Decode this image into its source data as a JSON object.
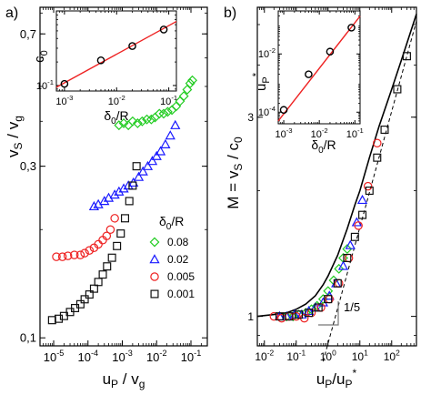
{
  "figure": {
    "panel_a": {
      "label": "a)",
      "chart_data": {
        "type": "scatter",
        "xlabel": "u_P / v_g",
        "ylabel": "v_S / v_g",
        "xscale": "log",
        "yscale": "log",
        "xlim": [
          4e-06,
          0.3
        ],
        "ylim": [
          0.095,
          0.83
        ],
        "x_ticks": [
          {
            "value": 1e-05,
            "base": "10",
            "exp": "-5"
          },
          {
            "value": 0.0001,
            "base": "10",
            "exp": "-4"
          },
          {
            "value": 0.001,
            "base": "10",
            "exp": "-3"
          },
          {
            "value": 0.01,
            "base": "10",
            "exp": "-2"
          },
          {
            "value": 0.1,
            "base": "10",
            "exp": "-1"
          }
        ],
        "y_ticks": [
          {
            "value": 0.1,
            "label": "0,1"
          },
          {
            "value": 0.3,
            "label": "0,3"
          },
          {
            "value": 0.7,
            "label": "0,7"
          }
        ],
        "legend": {
          "title": "δ0/R",
          "placement": "bottom-right",
          "entries": [
            "0.08",
            "0.02",
            "0.005",
            "0.001"
          ]
        },
        "series": [
          {
            "name": "0.08",
            "marker": "diamond",
            "color": "#22cc22",
            "x": [
              0.0008,
              0.0011,
              0.0015,
              0.002,
              0.0028,
              0.0038,
              0.0052,
              0.007,
              0.009,
              0.012,
              0.016,
              0.021,
              0.028,
              0.037,
              0.048,
              0.062,
              0.078,
              0.095,
              0.11
            ],
            "y": [
              0.39,
              0.395,
              0.39,
              0.4,
              0.395,
              0.4,
              0.405,
              0.405,
              0.41,
              0.42,
              0.42,
              0.425,
              0.43,
              0.44,
              0.455,
              0.47,
              0.49,
              0.51,
              0.52
            ]
          },
          {
            "name": "0.02",
            "marker": "triangle",
            "color": "#1a1aff",
            "x": [
              0.00015,
              0.0002,
              0.0003,
              0.0004,
              0.0006,
              0.0008,
              0.0011,
              0.0015,
              0.0021,
              0.003,
              0.004,
              0.0055,
              0.0075,
              0.01,
              0.013,
              0.018,
              0.025,
              0.035
            ],
            "y": [
              0.232,
              0.235,
              0.24,
              0.245,
              0.25,
              0.255,
              0.26,
              0.265,
              0.27,
              0.28,
              0.29,
              0.3,
              0.31,
              0.32,
              0.33,
              0.345,
              0.365,
              0.39
            ]
          },
          {
            "name": "0.005",
            "marker": "circle",
            "color": "#ee2222",
            "x": [
              1.2e-05,
              1.8e-05,
              2.6e-05,
              4e-05,
              6e-05,
              8e-05,
              0.00011,
              0.00015,
              0.0002,
              0.00027,
              0.00035,
              0.00045,
              0.0006
            ],
            "y": [
              0.168,
              0.168,
              0.169,
              0.17,
              0.17,
              0.172,
              0.175,
              0.178,
              0.182,
              0.187,
              0.192,
              0.2,
              0.215
            ]
          },
          {
            "name": "0.001",
            "marker": "square",
            "color": "#111111",
            "x": [
              9e-06,
              1.4e-05,
              2e-05,
              3e-05,
              4.2e-05,
              6e-05,
              8e-05,
              0.00011,
              0.00015,
              0.0002,
              0.00027,
              0.00036,
              0.0005,
              0.0007,
              0.0009,
              0.0012,
              0.0016,
              0.002,
              0.0026
            ],
            "y": [
              0.112,
              0.113,
              0.115,
              0.118,
              0.121,
              0.124,
              0.128,
              0.132,
              0.137,
              0.143,
              0.15,
              0.158,
              0.167,
              0.18,
              0.195,
              0.215,
              0.24,
              0.265,
              0.3
            ]
          }
        ]
      },
      "inset": {
        "chart_data": {
          "type": "line",
          "xlabel": "δ0/R",
          "ylabel": "c0",
          "xscale": "log",
          "yscale": "log",
          "xlim": [
            0.0007,
            0.14
          ],
          "ylim": [
            0.085,
            0.9
          ],
          "x_ticks": [
            {
              "value": 0.001,
              "base": "10",
              "exp": "-3"
            },
            {
              "value": 0.01,
              "base": "10",
              "exp": "-2"
            },
            {
              "value": 0.1,
              "base": "10",
              "exp": "-1"
            }
          ],
          "y_ticks": [
            {
              "value": 0.1,
              "base": "10",
              "exp": "-1"
            }
          ],
          "fit_line": {
            "x": [
              0.0007,
              0.14
            ],
            "y": [
              0.095,
              0.66
            ],
            "color": "#ee2222"
          },
          "points": {
            "x": [
              0.001,
              0.005,
              0.02,
              0.08
            ],
            "y": [
              0.105,
              0.21,
              0.32,
              0.52
            ]
          }
        }
      }
    },
    "panel_b": {
      "label": "b)",
      "chart_data": {
        "type": "scatter",
        "xlabel": "u_P / u_P*",
        "ylabel": "M = v_S / c_0",
        "xscale": "log",
        "yscale": "log",
        "xlim": [
          0.006,
          600
        ],
        "ylim": [
          0.85,
          5.5
        ],
        "x_ticks": [
          {
            "value": 0.01,
            "base": "10",
            "exp": "-2"
          },
          {
            "value": 0.1,
            "base": "10",
            "exp": "-1"
          },
          {
            "value": 1,
            "base": "10",
            "exp": "0"
          },
          {
            "value": 10,
            "base": "10",
            "exp": "1"
          },
          {
            "value": 100,
            "base": "10",
            "exp": "2"
          }
        ],
        "y_ticks": [
          {
            "value": 1,
            "label": "1"
          },
          {
            "value": 3,
            "label": "3"
          }
        ],
        "annotation": "1/5",
        "curve": {
          "x": [
            0.006,
            0.02,
            0.05,
            0.1,
            0.2,
            0.4,
            0.7,
            1,
            2,
            4,
            7,
            10,
            20,
            40,
            100,
            200,
            600
          ],
          "y": [
            1.0,
            1.01,
            1.02,
            1.04,
            1.07,
            1.12,
            1.19,
            1.25,
            1.4,
            1.62,
            1.85,
            2.0,
            2.4,
            2.85,
            3.5,
            4.1,
            5.3
          ]
        },
        "asymptote": {
          "x": [
            0.7,
            600
          ],
          "y": [
            0.78,
            5.1
          ]
        },
        "series": [
          {
            "name": "0.08",
            "marker": "diamond",
            "color": "#22cc22",
            "x": [
              0.05,
              0.08,
              0.12,
              0.2,
              0.3,
              0.45,
              0.7,
              1,
              1.5,
              2.2,
              3,
              4
            ],
            "y": [
              1.0,
              1.0,
              1.01,
              1.02,
              1.04,
              1.06,
              1.1,
              1.15,
              1.22,
              1.3,
              1.38,
              1.45
            ]
          },
          {
            "name": "0.02",
            "marker": "triangle",
            "color": "#1a1aff",
            "x": [
              0.03,
              0.05,
              0.09,
              0.15,
              0.25,
              0.4,
              0.7,
              1.1,
              1.8,
              3,
              5,
              8,
              12
            ],
            "y": [
              1.0,
              1.0,
              1.01,
              1.01,
              1.03,
              1.05,
              1.08,
              1.12,
              1.2,
              1.32,
              1.48,
              1.68,
              1.9
            ]
          },
          {
            "name": "0.005",
            "marker": "circle",
            "color": "#ee2222",
            "x": [
              0.02,
              0.035,
              0.06,
              0.1,
              0.18,
              0.3,
              0.6,
              1.1,
              2.2,
              4.5,
              9,
              18,
              35
            ],
            "y": [
              1.0,
              0.99,
              1.0,
              1.0,
              0.99,
              1.02,
              1.05,
              1.1,
              1.2,
              1.38,
              1.65,
              2.05,
              2.6
            ]
          },
          {
            "name": "0.001",
            "marker": "square",
            "color": "#111111",
            "x": [
              0.03,
              0.06,
              0.12,
              0.25,
              0.5,
              1,
              2,
              4,
              7,
              12,
              20,
              35,
              60,
              150,
              300
            ],
            "y": [
              1.0,
              1.0,
              1.01,
              1.02,
              1.05,
              1.1,
              1.2,
              1.38,
              1.55,
              1.75,
              2.0,
              2.4,
              2.8,
              3.5,
              4.2
            ]
          }
        ]
      },
      "inset": {
        "chart_data": {
          "type": "line",
          "xlabel": "δ0/R",
          "ylabel": "u_P*",
          "xscale": "log",
          "yscale": "log",
          "xlim": [
            0.0007,
            0.14
          ],
          "ylim": [
            4e-05,
            0.3
          ],
          "x_ticks": [
            {
              "value": 0.001,
              "base": "10",
              "exp": "-3"
            },
            {
              "value": 0.01,
              "base": "10",
              "exp": "-2"
            },
            {
              "value": 0.1,
              "base": "10",
              "exp": "-1"
            }
          ],
          "y_ticks": [
            {
              "value": 0.0001,
              "base": "10",
              "exp": "-4"
            },
            {
              "value": 0.01,
              "base": "10",
              "exp": "-2"
            }
          ],
          "fit_line": {
            "x": [
              0.0007,
              0.14
            ],
            "y": [
              5e-05,
              0.2
            ],
            "color": "#ee2222"
          },
          "points": {
            "x": [
              0.001,
              0.005,
              0.02,
              0.08
            ],
            "y": [
              0.00012,
              0.002,
              0.012,
              0.08
            ]
          }
        }
      }
    }
  }
}
